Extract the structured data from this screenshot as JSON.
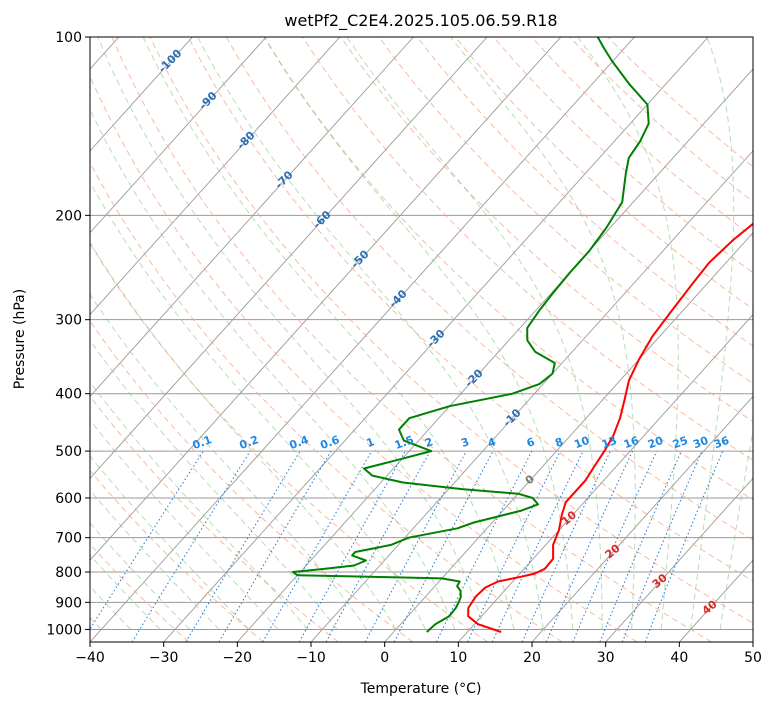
{
  "chart_data": {
    "type": "line",
    "chart_kind": "skew-t log-p",
    "title": "wetPf2_C2E4.2025.105.06.59.R18",
    "xlabel": "Temperature (°C)",
    "ylabel": "Pressure (hPa)",
    "xlim": [
      -40,
      50
    ],
    "ylim": [
      1050,
      100
    ],
    "y_scale": "log",
    "grid": true,
    "x_ticks": [
      -40,
      -30,
      -20,
      -10,
      0,
      10,
      20,
      30,
      40,
      50
    ],
    "x_tick_labels": [
      "−40",
      "−30",
      "−20",
      "−10",
      "0",
      "10",
      "20",
      "30",
      "40",
      "50"
    ],
    "y_ticks": [
      100,
      200,
      300,
      400,
      500,
      600,
      700,
      800,
      900,
      1000
    ],
    "y_tick_labels": [
      "100",
      "200",
      "300",
      "400",
      "500",
      "600",
      "700",
      "800",
      "900",
      "1000"
    ],
    "series": [
      {
        "color": "#ff0000",
        "points": [
          [
            1010,
            14.6
          ],
          [
            980,
            10.5
          ],
          [
            950,
            8.2
          ],
          [
            920,
            7.2
          ],
          [
            880,
            6.8
          ],
          [
            850,
            7.0
          ],
          [
            830,
            8.0
          ],
          [
            815,
            10.5
          ],
          [
            805,
            12.0
          ],
          [
            790,
            12.8
          ],
          [
            760,
            12.7
          ],
          [
            720,
            11.0
          ],
          [
            680,
            10.0
          ],
          [
            640,
            8.5
          ],
          [
            610,
            7.5
          ],
          [
            580,
            7.5
          ],
          [
            560,
            7.5
          ],
          [
            530,
            7.0
          ],
          [
            500,
            6.5
          ],
          [
            470,
            5.8
          ],
          [
            440,
            4.6
          ],
          [
            410,
            3.0
          ],
          [
            380,
            1.2
          ],
          [
            350,
            0.0
          ],
          [
            320,
            -1.0
          ],
          [
            290,
            -1.5
          ],
          [
            260,
            -2.0
          ],
          [
            240,
            -2.3
          ],
          [
            220,
            -1.8
          ],
          [
            205,
            -1.0
          ],
          [
            195,
            0.0
          ],
          [
            180,
            2.6
          ],
          [
            165,
            5.5
          ],
          [
            150,
            8.5
          ],
          [
            135,
            12.0
          ],
          [
            120,
            15.0
          ],
          [
            110,
            17.6
          ],
          [
            100,
            20.6
          ]
        ]
      },
      {
        "color": "#008000",
        "points": [
          [
            1010,
            4.5
          ],
          [
            980,
            4.7
          ],
          [
            950,
            5.6
          ],
          [
            920,
            5.5
          ],
          [
            900,
            5.2
          ],
          [
            880,
            4.8
          ],
          [
            860,
            4.0
          ],
          [
            845,
            3.0
          ],
          [
            830,
            2.8
          ],
          [
            820,
            0.0
          ],
          [
            815,
            -10.0
          ],
          [
            810,
            -20.0
          ],
          [
            800,
            -21.0
          ],
          [
            790,
            -17.0
          ],
          [
            780,
            -13.5
          ],
          [
            765,
            -12.5
          ],
          [
            750,
            -15.0
          ],
          [
            740,
            -15.0
          ],
          [
            730,
            -13.0
          ],
          [
            720,
            -11.0
          ],
          [
            700,
            -9.5
          ],
          [
            675,
            -4.0
          ],
          [
            660,
            -2.5
          ],
          [
            645,
            0.0
          ],
          [
            630,
            2.5
          ],
          [
            615,
            4.0
          ],
          [
            600,
            2.5
          ],
          [
            590,
            0.0
          ],
          [
            580,
            -8.0
          ],
          [
            565,
            -17.0
          ],
          [
            550,
            -22.0
          ],
          [
            535,
            -24.0
          ],
          [
            520,
            -21.0
          ],
          [
            500,
            -17.0
          ],
          [
            480,
            -22.0
          ],
          [
            460,
            -24.0
          ],
          [
            440,
            -24.0
          ],
          [
            420,
            -20.0
          ],
          [
            400,
            -13.0
          ],
          [
            385,
            -10.5
          ],
          [
            370,
            -10.0
          ],
          [
            355,
            -11.0
          ],
          [
            340,
            -15.0
          ],
          [
            325,
            -17.5
          ],
          [
            310,
            -19.0
          ],
          [
            290,
            -19.5
          ],
          [
            270,
            -19.8
          ],
          [
            250,
            -20.0
          ],
          [
            230,
            -20.0
          ],
          [
            210,
            -20.5
          ],
          [
            190,
            -21.5
          ],
          [
            170,
            -24.5
          ],
          [
            160,
            -26.0
          ],
          [
            150,
            -26.5
          ],
          [
            140,
            -27.5
          ],
          [
            130,
            -30.0
          ],
          [
            120,
            -35.0
          ],
          [
            110,
            -40.0
          ],
          [
            105,
            -42.5
          ],
          [
            100,
            -45.0
          ]
        ]
      }
    ],
    "dry_adiabat_labels": [
      "-100",
      "-90",
      "-80",
      "-70",
      "-60",
      "-50",
      "-40",
      "-30",
      "-20",
      "-10"
    ],
    "moist_adiabat_labels": [
      "0",
      "10",
      "20",
      "30",
      "40"
    ],
    "mixing_ratio_labels": [
      "0.1",
      "0.2",
      "0.4",
      "0.6",
      "1",
      "1.5",
      "2",
      "3",
      "4",
      "6",
      "8",
      "10",
      "13",
      "16",
      "20",
      "25",
      "30",
      "36"
    ],
    "colors": {
      "dry_adiabat": "#f4a582",
      "moist_adiabat": "#7fbf7b",
      "mixing_ratio": "#1f78d1",
      "isotherm": "#9a9a9a",
      "isobar": "#9a9a9a",
      "dry_label": "#2a6fb5",
      "mixing_label": "#1e88e5",
      "moist_label": "#d62828"
    }
  }
}
